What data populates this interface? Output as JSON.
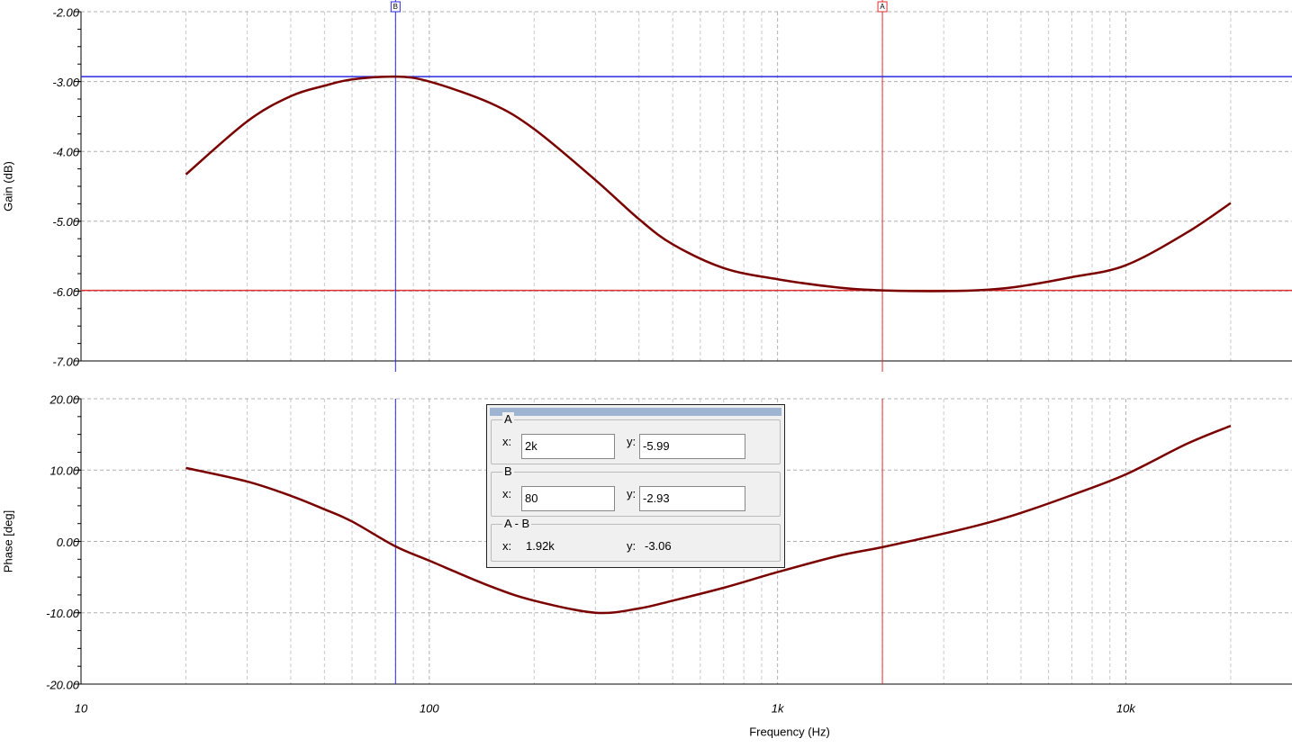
{
  "chart_data": [
    {
      "type": "line",
      "ylabel": "Gain (dB)",
      "xscale": "log",
      "grid": true,
      "xlim": [
        10,
        30000
      ],
      "ylim": [
        -7,
        -2
      ],
      "yticks": [
        {
          "value": -2,
          "label": "-2.00"
        },
        {
          "value": -3,
          "label": "-3.00"
        },
        {
          "value": -4,
          "label": "-4.00"
        },
        {
          "value": -5,
          "label": "-5.00"
        },
        {
          "value": -6,
          "label": "-6.00"
        },
        {
          "value": -7,
          "label": "-7.00"
        }
      ],
      "x": [
        20,
        30,
        40,
        50,
        60,
        80,
        100,
        150,
        200,
        300,
        400,
        500,
        700,
        1000,
        1500,
        2000,
        3000,
        4000,
        5000,
        7000,
        10000,
        15000,
        20000
      ],
      "series": [
        {
          "color": "#7a0000",
          "values": [
            -4.33,
            -3.57,
            -3.21,
            -3.06,
            -2.97,
            -2.93,
            -3.0,
            -3.31,
            -3.68,
            -4.41,
            -4.97,
            -5.33,
            -5.67,
            -5.83,
            -5.95,
            -5.99,
            -6.0,
            -5.98,
            -5.93,
            -5.8,
            -5.63,
            -5.16,
            -4.74
          ]
        }
      ]
    },
    {
      "type": "line",
      "ylabel": "Phase [deg]",
      "xlabel": "Frequency (Hz)",
      "xscale": "log",
      "grid": true,
      "xlim": [
        10,
        30000
      ],
      "ylim": [
        -20,
        20
      ],
      "xticks": [
        10,
        100,
        {
          "value": 1000,
          "label": "1k"
        },
        {
          "value": 10000,
          "label": "10k"
        }
      ],
      "yticks": [
        {
          "value": 20,
          "label": "20.00"
        },
        {
          "value": 10,
          "label": "10.00"
        },
        {
          "value": 0,
          "label": "0.00"
        },
        {
          "value": -10,
          "label": "-10.00"
        },
        {
          "value": -20,
          "label": "-20.00"
        }
      ],
      "x": [
        20,
        30,
        40,
        50,
        60,
        80,
        100,
        150,
        200,
        300,
        400,
        500,
        700,
        1000,
        1500,
        2000,
        3000,
        4000,
        5000,
        7000,
        10000,
        15000,
        20000
      ],
      "series": [
        {
          "color": "#7a0000",
          "values": [
            10.3,
            8.4,
            6.4,
            4.5,
            2.8,
            -0.7,
            -2.7,
            -6.3,
            -8.3,
            -10.0,
            -9.4,
            -8.3,
            -6.5,
            -4.3,
            -2.0,
            -0.8,
            1.1,
            2.6,
            4.0,
            6.5,
            9.4,
            13.7,
            16.2
          ]
        }
      ]
    }
  ],
  "cursor_panel": {
    "fields": [
      "x:",
      "y:"
    ],
    "cursors": [
      {
        "name": "A",
        "color": "#e03030",
        "x": {
          "value": 2000,
          "label": "2k"
        },
        "y": -5.99
      },
      {
        "name": "B",
        "color": "#2a2ae0",
        "x": 80,
        "y": -2.93
      }
    ],
    "difference": {
      "name": "A - B",
      "x": {
        "value": 1920,
        "label": "1.92k"
      },
      "y": -3.06
    }
  }
}
